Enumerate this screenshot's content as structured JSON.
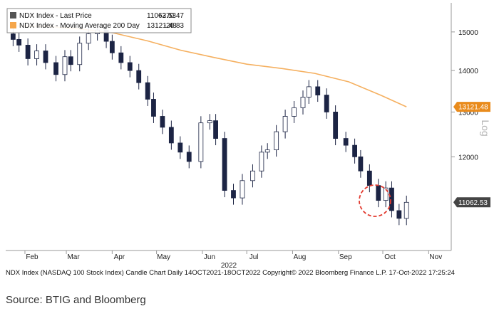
{
  "chart_data": {
    "type": "candlestick",
    "title": "",
    "footer": "NDX Index (NASDAQ 100 Stock Index) Candle Chart  Daily 14OCT2021-18OCT2022 Copyright© 2022 Bloomberg Finance L.P.  17-Oct-2022 17:25:24",
    "source": "Source: BTIG and Bloomberg",
    "yaxis": {
      "label": "Log",
      "scale": "log",
      "range": [
        10150,
        15800
      ],
      "ticks": [
        "15000",
        "14000",
        "13000",
        "12000"
      ],
      "tick_values": [
        15000,
        14000,
        13000,
        12000
      ]
    },
    "xaxis": {
      "months": [
        "Feb",
        "Mar",
        "Apr",
        "May",
        "Jun",
        "Jul",
        "Aug",
        "Sep",
        "Oct",
        "Nov"
      ],
      "year_label": "2022"
    },
    "legend": [
      {
        "name": "NDX Index - Last Price",
        "value": "11062.53",
        "change": "+370.47",
        "color": "#555555"
      },
      {
        "name": "NDX Index - Moving Average 200 Day",
        "value": "13121.48",
        "change": "-26.83",
        "color": "#f5a64a"
      }
    ],
    "tags": [
      {
        "label": "13121.48",
        "value": 13121.48,
        "color": "#e98b1c"
      },
      {
        "label": "11062.53",
        "value": 11062.53,
        "color": "#444444"
      }
    ],
    "colors": {
      "up_candle": "#ffffff",
      "down_candle": "#1c2444",
      "moving_average": "#f5b060",
      "highlight_circle": "#e23a2f"
    },
    "moving_average_200d": {
      "dates": [
        "2022-01-24",
        "2022-02-15",
        "2022-03-10",
        "2022-04-01",
        "2022-04-25",
        "2022-05-17",
        "2022-06-09",
        "2022-07-01",
        "2022-07-25",
        "2022-08-16",
        "2022-09-08",
        "2022-09-30",
        "2022-10-17"
      ],
      "values": [
        15160,
        15150,
        15080,
        14980,
        14760,
        14520,
        14330,
        14160,
        14050,
        13930,
        13720,
        13390,
        13121
      ]
    },
    "last_price_close": {
      "dates": [
        "2022-01-24",
        "2022-01-28",
        "2022-02-03",
        "2022-02-09",
        "2022-02-15",
        "2022-02-22",
        "2022-02-28",
        "2022-03-04",
        "2022-03-10",
        "2022-03-16",
        "2022-03-22",
        "2022-03-28",
        "2022-04-01",
        "2022-04-07",
        "2022-04-13",
        "2022-04-19",
        "2022-04-25",
        "2022-04-29",
        "2022-05-05",
        "2022-05-11",
        "2022-05-17",
        "2022-05-23",
        "2022-05-31",
        "2022-06-06",
        "2022-06-10",
        "2022-06-16",
        "2022-06-22",
        "2022-06-28",
        "2022-07-05",
        "2022-07-11",
        "2022-07-15",
        "2022-07-21",
        "2022-07-27",
        "2022-08-02",
        "2022-08-08",
        "2022-08-12",
        "2022-08-18",
        "2022-08-24",
        "2022-08-30",
        "2022-09-06",
        "2022-09-12",
        "2022-09-16",
        "2022-09-22",
        "2022-09-28",
        "2022-10-03",
        "2022-10-07",
        "2022-10-12",
        "2022-10-17"
      ],
      "values": [
        14800,
        14650,
        14300,
        14500,
        14200,
        13900,
        14350,
        14150,
        14700,
        14950,
        15050,
        14750,
        14450,
        14200,
        14000,
        13700,
        13300,
        12900,
        12650,
        12300,
        12100,
        11900,
        12750,
        12800,
        12400,
        11300,
        11150,
        11500,
        11700,
        12100,
        12150,
        12550,
        12900,
        13100,
        13350,
        13600,
        13400,
        13000,
        12400,
        12250,
        12000,
        11700,
        11400,
        11100,
        11350,
        10900,
        10750,
        11062.53
      ]
    }
  }
}
